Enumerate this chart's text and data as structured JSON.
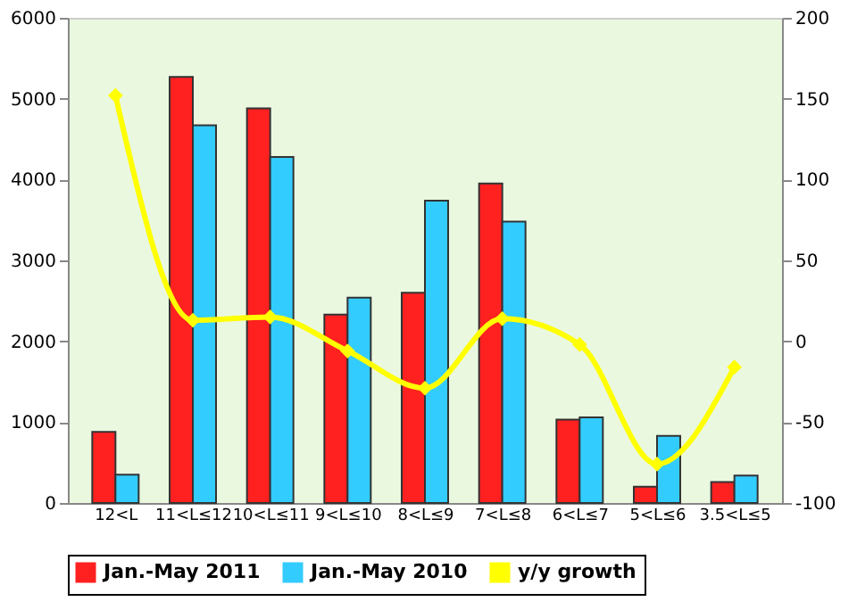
{
  "chart_data": {
    "type": "bar",
    "categories": [
      "12<L",
      "11<L≤12",
      "10<L≤11",
      "9<L≤10",
      "8<L≤9",
      "7<L≤8",
      "6<L≤7",
      "5<L≤6",
      "3.5<L≤5"
    ],
    "series": [
      {
        "name": "Jan.-May 2011",
        "color": "#ff2020",
        "values": [
          880,
          5270,
          4880,
          2330,
          2600,
          3950,
          1030,
          200,
          260
        ]
      },
      {
        "name": "Jan.-May 2010",
        "color": "#33ccff",
        "values": [
          350,
          4670,
          4280,
          2540,
          3740,
          3480,
          1060,
          830,
          340
        ]
      },
      {
        "name": "y/y growth",
        "type": "line",
        "axis": "y2",
        "color": "#ffff00",
        "marker": "diamond",
        "values": [
          152,
          13,
          15,
          -6,
          -29,
          14,
          -2,
          -76,
          -16
        ]
      }
    ],
    "ylim": [
      0,
      6000
    ],
    "yticks": [
      0,
      1000,
      2000,
      3000,
      4000,
      5000,
      6000
    ],
    "y2lim": [
      -100,
      200
    ],
    "y2ticks": [
      -100,
      -50,
      0,
      50,
      100,
      150,
      200
    ],
    "grid": false,
    "legend": "bottom"
  }
}
